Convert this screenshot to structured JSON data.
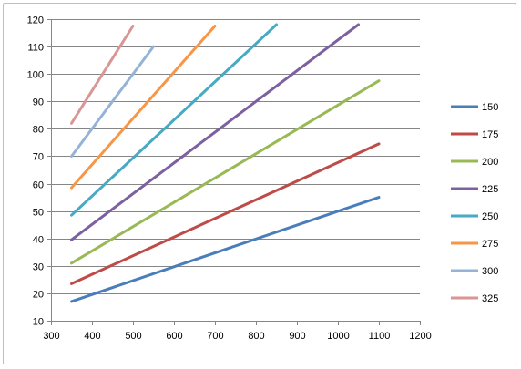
{
  "chart_data": {
    "type": "line",
    "title": "",
    "xlabel": "",
    "ylabel": "",
    "xlim": [
      300,
      1200
    ],
    "ylim": [
      10,
      120
    ],
    "x_ticks": [
      300,
      400,
      500,
      600,
      700,
      800,
      900,
      1000,
      1100,
      1200
    ],
    "y_ticks": [
      10,
      20,
      30,
      40,
      50,
      60,
      70,
      80,
      90,
      100,
      110,
      120
    ],
    "grid": "horizontal",
    "legend_position": "right",
    "series": [
      {
        "name": "150",
        "color": "#4a7ebb",
        "x": [
          350,
          1100
        ],
        "y": [
          17,
          55
        ]
      },
      {
        "name": "175",
        "color": "#be4b48",
        "x": [
          350,
          1100
        ],
        "y": [
          23.5,
          74.5
        ]
      },
      {
        "name": "200",
        "color": "#98b954",
        "x": [
          350,
          1100
        ],
        "y": [
          31,
          97.5
        ]
      },
      {
        "name": "225",
        "color": "#7d60a0",
        "x": [
          350,
          1050
        ],
        "y": [
          39.5,
          118
        ]
      },
      {
        "name": "250",
        "color": "#46aac5",
        "x": [
          350,
          850
        ],
        "y": [
          48.5,
          118
        ]
      },
      {
        "name": "275",
        "color": "#f79646",
        "x": [
          350,
          700
        ],
        "y": [
          58.5,
          117.5
        ]
      },
      {
        "name": "300",
        "color": "#95b3d7",
        "x": [
          350,
          550
        ],
        "y": [
          70,
          110
        ]
      },
      {
        "name": "325",
        "color": "#d99694",
        "x": [
          350,
          500
        ],
        "y": [
          82,
          117.5
        ]
      }
    ]
  }
}
